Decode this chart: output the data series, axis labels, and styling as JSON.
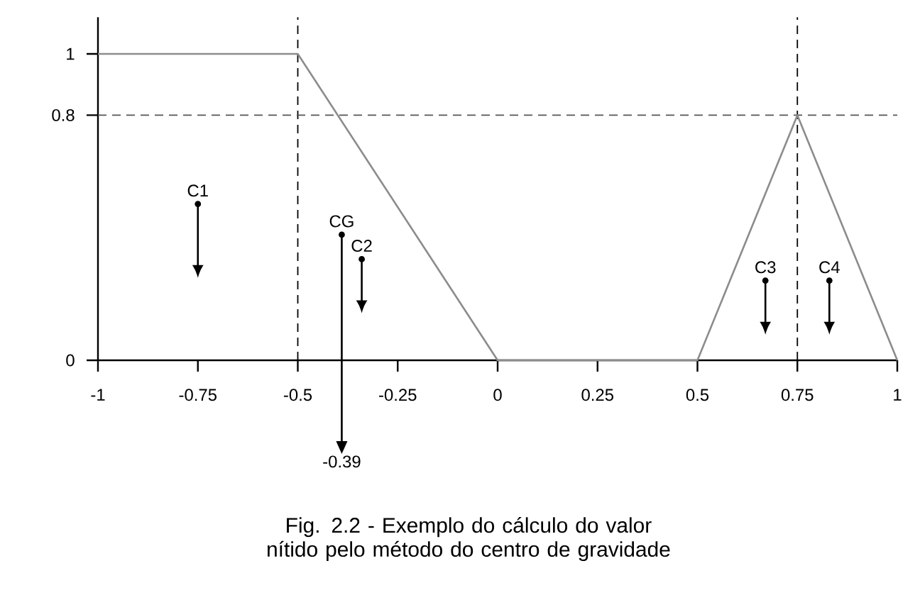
{
  "chart_data": {
    "type": "line",
    "x": [
      -1,
      -0.5,
      0,
      0.5,
      0.75,
      1
    ],
    "values": [
      1,
      1,
      0,
      0,
      0.8,
      0
    ],
    "color": "#8c8c8c",
    "line_style": "solid",
    "marker": "none",
    "xlim": [
      -1,
      1
    ],
    "ylim": [
      0,
      1.12
    ],
    "xticks": [
      -1,
      -0.75,
      -0.5,
      -0.25,
      0,
      0.25,
      0.5,
      0.75,
      1
    ],
    "yticks": [
      0,
      0.8,
      1
    ],
    "ref_lines": [
      {
        "axis": "x",
        "value": -0.5,
        "color": "#000000",
        "line_style": "dashed"
      },
      {
        "axis": "y",
        "value": 0.8,
        "color": "#555555",
        "line_style": "dashed"
      },
      {
        "axis": "x",
        "value": 0.75,
        "color": "#000000",
        "line_style": "dashed"
      },
      {
        "axis": "x",
        "value": -0.39,
        "label": "-0.39",
        "color": "#000000",
        "line_style": "solid"
      }
    ],
    "annotations": [
      {
        "text": "C1",
        "x": -0.75,
        "y": 0.51
      },
      {
        "text": "CG",
        "x": -0.39,
        "y": 0.41
      },
      {
        "text": "C2",
        "x": -0.34,
        "y": 0.33
      },
      {
        "text": "C3",
        "x": 0.67,
        "y": 0.26
      },
      {
        "text": "C4",
        "x": 0.83,
        "y": 0.26
      },
      "Fig. 2.2 - Exemplo do cálculo do valor nítido pelo método do centro de gravidade"
    ]
  }
}
